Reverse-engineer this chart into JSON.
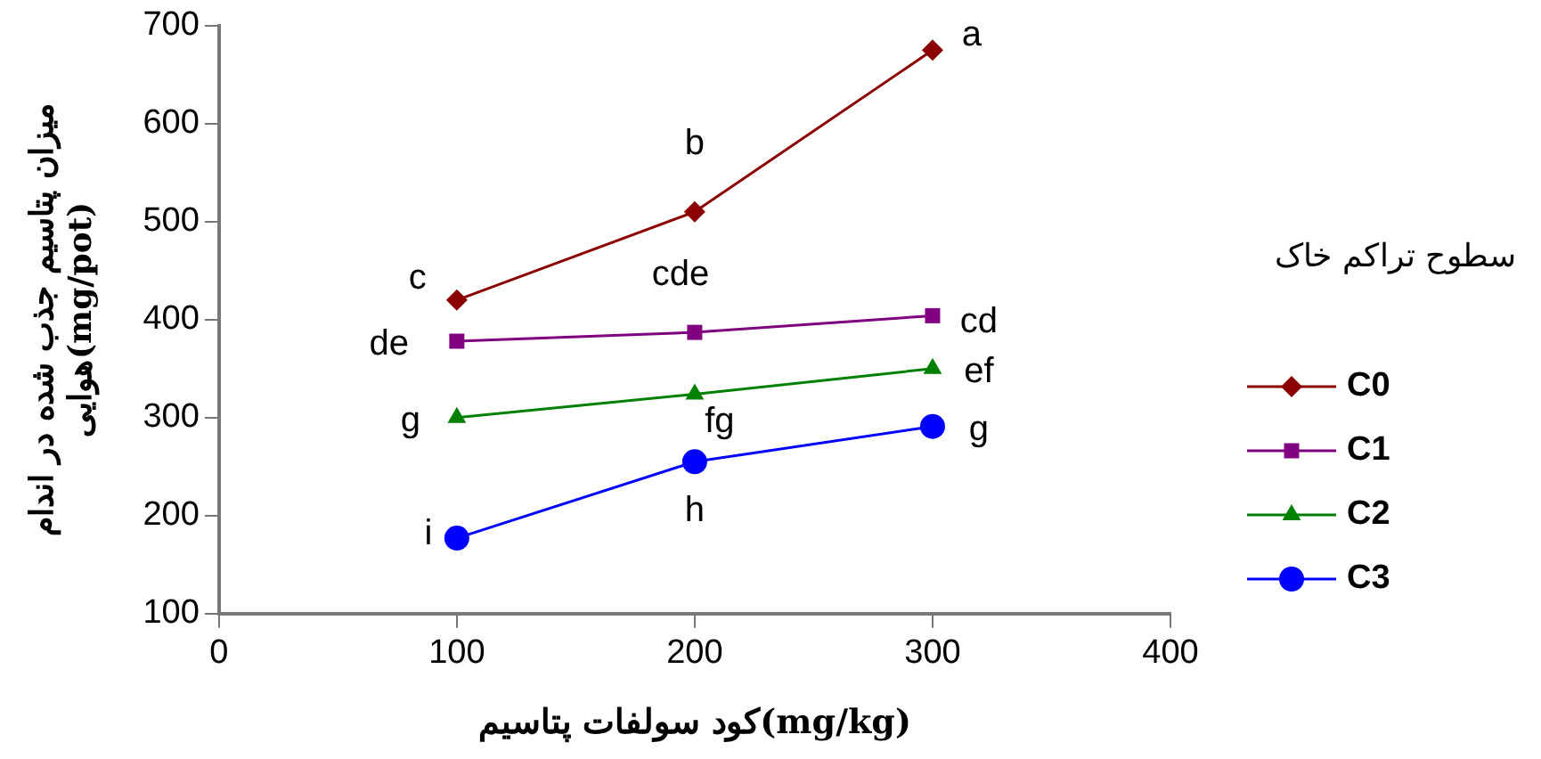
{
  "chart_data": {
    "type": "line",
    "xlabel": "کود سولفات پتاسیم(mg/kg)",
    "ylabel": "میزان پتاسیم جذب شده در اندام\nهوایی(mg/pot)",
    "legend_title": "سطوح تراکم خاک",
    "x": [
      100,
      200,
      300
    ],
    "series": [
      {
        "name": "C0",
        "color": "#8b0000",
        "marker": "diamond",
        "values": [
          420,
          510,
          675
        ]
      },
      {
        "name": "C1",
        "color": "#800080",
        "marker": "square",
        "values": [
          378,
          387,
          404
        ]
      },
      {
        "name": "C2",
        "color": "#008000",
        "marker": "triangle",
        "values": [
          300,
          324,
          350
        ]
      },
      {
        "name": "C3",
        "color": "#0000ff",
        "marker": "circle",
        "values": [
          177,
          255,
          291
        ]
      }
    ],
    "annotations": [
      {
        "text": "c",
        "x": 100,
        "y": 420
      },
      {
        "text": "b",
        "x": 200,
        "y": 510
      },
      {
        "text": "a",
        "x": 300,
        "y": 675
      },
      {
        "text": "de",
        "x": 100,
        "y": 378
      },
      {
        "text": "cde",
        "x": 200,
        "y": 387
      },
      {
        "text": "cd",
        "x": 300,
        "y": 404
      },
      {
        "text": "g",
        "x": 100,
        "y": 300
      },
      {
        "text": "fg",
        "x": 200,
        "y": 324
      },
      {
        "text": "ef",
        "x": 300,
        "y": 350
      },
      {
        "text": "i",
        "x": 100,
        "y": 177
      },
      {
        "text": "h",
        "x": 200,
        "y": 255
      },
      {
        "text": "g",
        "x": 300,
        "y": 291
      }
    ],
    "xlim": [
      0,
      400
    ],
    "xticks": [
      0,
      100,
      200,
      300,
      400
    ],
    "ylim": [
      100,
      700
    ],
    "yticks": [
      100,
      200,
      300,
      400,
      500,
      600,
      700
    ],
    "grid": false,
    "legend": "right",
    "line_style": "solid"
  }
}
